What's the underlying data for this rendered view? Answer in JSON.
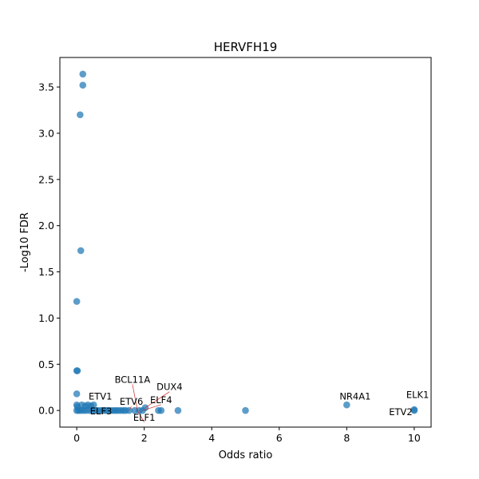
{
  "chart_data": {
    "type": "scatter",
    "title": "HERVFH19",
    "xlabel": "Odds ratio",
    "ylabel": "-Log10 FDR",
    "xlim": [
      -0.5,
      10.5
    ],
    "ylim": [
      -0.18,
      3.82
    ],
    "xticks": [
      0,
      2,
      4,
      6,
      8,
      10
    ],
    "xtick_labels": [
      "0",
      "2",
      "4",
      "6",
      "8",
      "10"
    ],
    "yticks": [
      0.0,
      0.5,
      1.0,
      1.5,
      2.0,
      2.5,
      3.0,
      3.5
    ],
    "ytick_labels": [
      "0.0",
      "0.5",
      "1.0",
      "1.5",
      "2.0",
      "2.5",
      "3.0",
      "3.5"
    ],
    "grid": false,
    "point_color": "#1f77b4",
    "annotation_line_color": "#d62728",
    "points": [
      {
        "x": 0.18,
        "y": 3.64
      },
      {
        "x": 0.18,
        "y": 3.52
      },
      {
        "x": 0.1,
        "y": 3.2
      },
      {
        "x": 0.12,
        "y": 1.73
      },
      {
        "x": 0.0,
        "y": 1.18
      },
      {
        "x": 0.0,
        "y": 0.43
      },
      {
        "x": 0.02,
        "y": 0.43
      },
      {
        "x": 0.0,
        "y": 0.18
      },
      {
        "x": 0.0,
        "y": 0.06
      },
      {
        "x": 0.02,
        "y": 0.04
      },
      {
        "x": 0.0,
        "y": 0.0
      },
      {
        "x": 0.05,
        "y": 0.0
      },
      {
        "x": 0.12,
        "y": 0.0
      },
      {
        "x": 0.15,
        "y": 0.06
      },
      {
        "x": 0.2,
        "y": 0.0
      },
      {
        "x": 0.25,
        "y": 0.05
      },
      {
        "x": 0.28,
        "y": 0.0
      },
      {
        "x": 0.33,
        "y": 0.06
      },
      {
        "x": 0.38,
        "y": 0.0
      },
      {
        "x": 0.42,
        "y": 0.05
      },
      {
        "x": 0.47,
        "y": 0.0
      },
      {
        "x": 0.5,
        "y": 0.06
      },
      {
        "x": 0.55,
        "y": 0.0
      },
      {
        "x": 0.62,
        "y": 0.0
      },
      {
        "x": 0.7,
        "y": 0.0
      },
      {
        "x": 0.78,
        "y": 0.0
      },
      {
        "x": 0.85,
        "y": 0.0
      },
      {
        "x": 0.92,
        "y": 0.0
      },
      {
        "x": 1.0,
        "y": 0.0
      },
      {
        "x": 1.08,
        "y": 0.0
      },
      {
        "x": 1.15,
        "y": 0.0
      },
      {
        "x": 1.22,
        "y": 0.0
      },
      {
        "x": 1.3,
        "y": 0.0
      },
      {
        "x": 1.38,
        "y": 0.0
      },
      {
        "x": 1.45,
        "y": 0.0
      },
      {
        "x": 1.55,
        "y": 0.0
      },
      {
        "x": 1.72,
        "y": 0.0
      },
      {
        "x": 1.85,
        "y": 0.0
      },
      {
        "x": 1.95,
        "y": 0.0
      },
      {
        "x": 2.03,
        "y": 0.03
      },
      {
        "x": 2.42,
        "y": 0.0
      },
      {
        "x": 2.5,
        "y": 0.0
      },
      {
        "x": 3.0,
        "y": 0.0
      },
      {
        "x": 5.0,
        "y": 0.0
      },
      {
        "x": 8.0,
        "y": 0.06
      },
      {
        "x": 10.0,
        "y": 0.0
      },
      {
        "x": 10.0,
        "y": 0.01
      }
    ],
    "annotations": [
      {
        "text": "ELK1",
        "x": 10.0,
        "y": 0.0,
        "tx": 10.1,
        "ty": 0.135,
        "line": false
      },
      {
        "text": "ETV2",
        "x": 10.0,
        "y": 0.0,
        "tx": 9.6,
        "ty": -0.05,
        "line": false
      },
      {
        "text": "NR4A1",
        "x": 8.0,
        "y": 0.06,
        "tx": 8.25,
        "ty": 0.12,
        "line": false
      },
      {
        "text": "DUX4",
        "x": 2.03,
        "y": 0.03,
        "tx": 2.75,
        "ty": 0.22,
        "line": true
      },
      {
        "text": "ELF4",
        "x": 1.95,
        "y": 0.0,
        "tx": 2.5,
        "ty": 0.08,
        "line": true
      },
      {
        "text": "BCL11A",
        "x": 1.8,
        "y": 0.0,
        "tx": 1.65,
        "ty": 0.3,
        "line": true
      },
      {
        "text": "ETV6",
        "x": 1.55,
        "y": 0.0,
        "tx": 1.62,
        "ty": 0.06,
        "line": true
      },
      {
        "text": "ELF1",
        "x": 1.8,
        "y": 0.0,
        "tx": 2.0,
        "ty": -0.11,
        "line": true
      },
      {
        "text": "ETV1",
        "x": 0.5,
        "y": 0.0,
        "tx": 0.7,
        "ty": 0.12,
        "line": false
      },
      {
        "text": "ELF3",
        "x": 0.5,
        "y": 0.0,
        "tx": 0.72,
        "ty": -0.04,
        "line": false
      }
    ]
  }
}
